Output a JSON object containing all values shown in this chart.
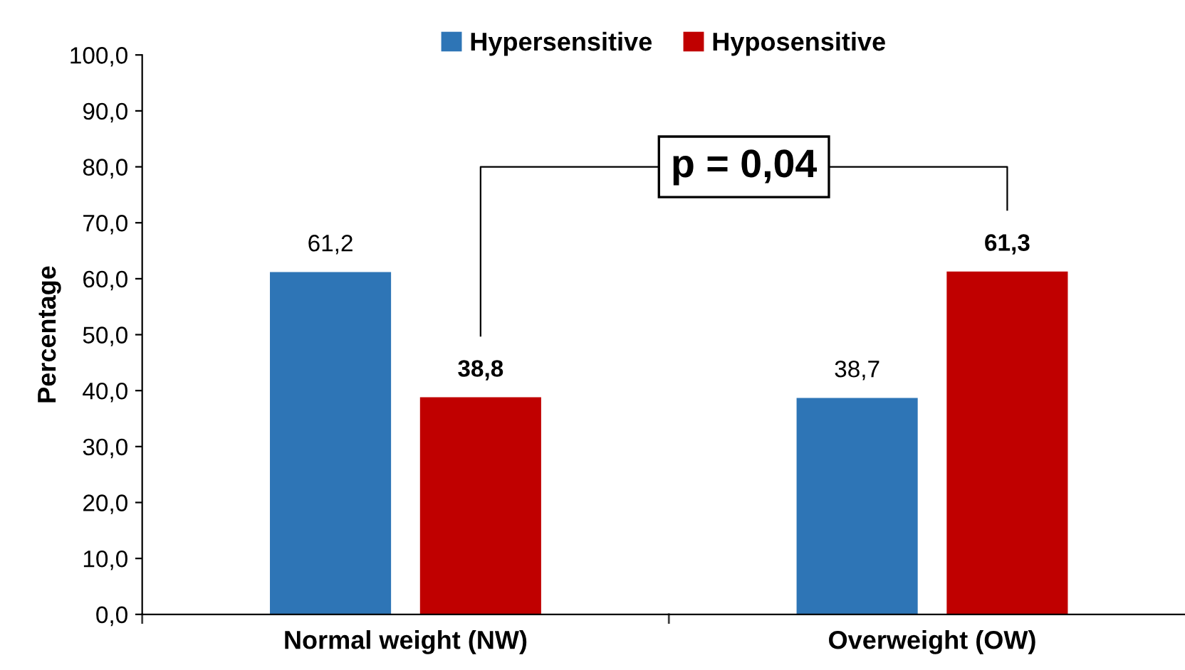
{
  "chart_data": {
    "type": "bar",
    "ylabel": "Percentage",
    "categories": [
      "Normal weight (NW)",
      "Overweight (OW)"
    ],
    "series": [
      {
        "name": "Hypersensitive",
        "color": "#2e75b6",
        "values": [
          61.2,
          38.7
        ],
        "value_labels": [
          "61,2",
          "38,7"
        ]
      },
      {
        "name": "Hyposensitive",
        "color": "#c00000",
        "values": [
          38.8,
          61.3
        ],
        "value_labels": [
          "38,8",
          "61,3"
        ]
      }
    ],
    "ylim": [
      0,
      100
    ],
    "yticks": [
      {
        "value": 0,
        "label": "0,0"
      },
      {
        "value": 10,
        "label": "10,0"
      },
      {
        "value": 20,
        "label": "20,0"
      },
      {
        "value": 30,
        "label": "30,0"
      },
      {
        "value": 40,
        "label": "40,0"
      },
      {
        "value": 50,
        "label": "50,0"
      },
      {
        "value": 60,
        "label": "60,0"
      },
      {
        "value": 70,
        "label": "70,0"
      },
      {
        "value": 80,
        "label": "80,0"
      },
      {
        "value": 90,
        "label": "90,0"
      },
      {
        "value": 100,
        "label": "100,0"
      }
    ],
    "annotations": [
      "p = 0,04"
    ],
    "grid": false,
    "legend": "top"
  }
}
